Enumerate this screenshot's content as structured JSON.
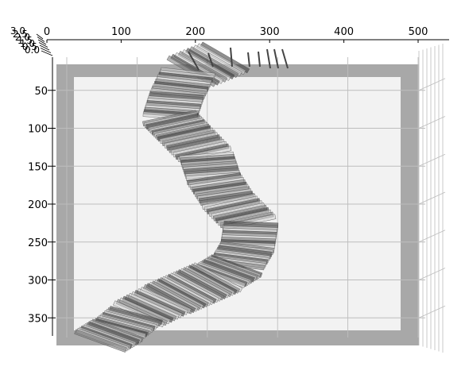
{
  "chart_data": {
    "type": "surface-3d",
    "title": "",
    "xlabel": "",
    "ylabel": "",
    "zlabel": "",
    "x_ticks": [
      "0",
      "100",
      "200",
      "300",
      "400",
      "500"
    ],
    "y_ticks": [
      "50",
      "100",
      "150",
      "200",
      "250",
      "300",
      "350"
    ],
    "z_ticks": [
      "0.0",
      "0.5",
      "1.0",
      "1.5",
      "2.0",
      "2.5",
      "3.0"
    ],
    "xlim": [
      0,
      540
    ],
    "ylim": [
      0,
      390
    ],
    "zlim": [
      0,
      3
    ],
    "grid": true,
    "legend": "none",
    "series": [
      {
        "values": [
          {
            "y": 0,
            "x": 240
          },
          {
            "y": 20,
            "x": 190
          },
          {
            "y": 50,
            "x": 175
          },
          {
            "y": 80,
            "x": 165
          },
          {
            "y": 100,
            "x": 185
          },
          {
            "y": 130,
            "x": 215
          },
          {
            "y": 160,
            "x": 225
          },
          {
            "y": 190,
            "x": 245
          },
          {
            "y": 220,
            "x": 275
          },
          {
            "y": 250,
            "x": 270
          },
          {
            "y": 275,
            "x": 255
          },
          {
            "y": 290,
            "x": 230
          },
          {
            "y": 305,
            "x": 195
          },
          {
            "y": 320,
            "x": 160
          },
          {
            "y": 340,
            "x": 120
          },
          {
            "y": 360,
            "x": 95
          },
          {
            "y": 375,
            "x": 70
          }
        ]
      }
    ],
    "colors": {
      "pane": "#f2f2f2",
      "border": "#a8a8a8",
      "grid": "#bdbdbd",
      "surface_dark": "#333333",
      "surface_light": "#d0d0d0"
    }
  }
}
